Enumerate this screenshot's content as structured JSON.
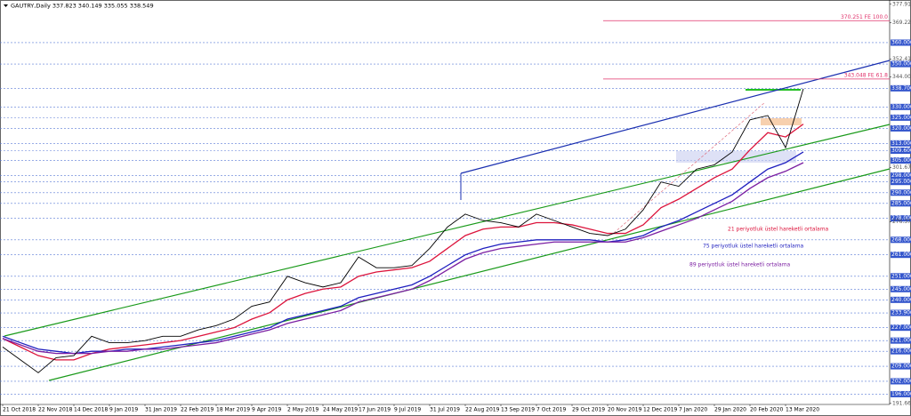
{
  "chart_data": {
    "type": "line",
    "title": "GAUTRY,Daily 337.823 340.149 335.055 338.549",
    "categories": [
      "21 Oct 2018",
      null,
      "22 Nov 2018",
      null,
      "14 Dec 2018",
      null,
      "9 Jan 2019",
      null,
      "31 Jan 2019",
      null,
      "22 Feb 2019",
      null,
      "18 Mar 2019",
      null,
      "9 Apr 2019",
      null,
      "2 May 2019",
      null,
      "24 May 2019",
      null,
      "17 Jun 2019",
      null,
      "9 Jul 2019",
      null,
      "31 Jul 2019",
      null,
      "22 Aug 2019",
      null,
      "13 Sep 2019",
      null,
      "7 Oct 2019",
      null,
      "29 Oct 2019",
      null,
      "20 Nov 2019",
      null,
      "12 Dec 2019",
      null,
      "7 Jan 2020",
      null,
      "29 Jan 2020",
      null,
      "20 Feb 2020",
      null,
      "13 Mar 2020",
      null
    ],
    "values": [
      218,
      212,
      206,
      213,
      214,
      223,
      220,
      220,
      221,
      223,
      223,
      226,
      228,
      231,
      237,
      239,
      251,
      248,
      246,
      248,
      260,
      255,
      255,
      256,
      264,
      274,
      280,
      277,
      276,
      274,
      280,
      277,
      274,
      271,
      270,
      273,
      282,
      295,
      293,
      301,
      303,
      309,
      324,
      326,
      311,
      338.5
    ],
    "color": "#000000",
    "series": [
      {
        "name": "21 periyotluk üstel hareketli ortalama",
        "color": "#dc143c",
        "values": [
          222,
          218,
          214,
          212,
          212,
          215,
          217,
          218,
          219,
          220,
          221,
          223,
          225,
          227,
          231,
          234,
          240,
          243,
          245,
          246,
          251,
          253,
          254,
          255,
          258,
          264,
          270,
          273,
          274,
          274,
          276,
          276,
          275,
          273,
          271,
          271,
          275,
          283,
          287,
          292,
          297,
          301,
          310,
          318,
          316,
          322
        ]
      },
      {
        "name": "75 periyotluk üstel hareketli ortalama",
        "color": "#1f1fbf",
        "values": [
          223,
          220,
          217,
          216,
          215,
          216,
          216,
          217,
          217,
          218,
          219,
          220,
          221,
          223,
          225,
          227,
          231,
          233,
          235,
          237,
          241,
          243,
          245,
          247,
          251,
          256,
          261,
          264,
          266,
          267,
          268,
          268,
          268,
          268,
          267,
          268,
          270,
          274,
          277,
          281,
          285,
          289,
          295,
          301,
          304,
          309
        ]
      },
      {
        "name": "89 periyotluk üstel hareketli ortalama",
        "color": "#7b1fa2",
        "values": [
          222,
          219,
          216,
          215,
          215,
          215,
          216,
          216,
          217,
          217,
          218,
          219,
          220,
          222,
          224,
          226,
          229,
          231,
          233,
          235,
          239,
          241,
          243,
          245,
          249,
          254,
          259,
          262,
          264,
          265,
          266,
          267,
          267,
          267,
          267,
          267,
          269,
          272,
          275,
          278,
          282,
          286,
          292,
          297,
          300,
          304
        ]
      }
    ],
    "ylim": [
      191.2,
      379.9
    ],
    "yticks": [
      {
        "value": 377.915,
        "label": "377.915"
      },
      {
        "value": 369.225,
        "label": "369.225"
      },
      {
        "value": 352.415,
        "label": "352.415"
      },
      {
        "value": 344,
        "label": "344.000"
      },
      {
        "value": 301.67,
        "label": "301.670"
      },
      {
        "value": 276.37,
        "label": "276.370"
      },
      {
        "value": 191.66,
        "label": "191.660"
      }
    ],
    "levels": [
      {
        "value": 360,
        "label": "360.000"
      },
      {
        "value": 350,
        "label": "350.000"
      },
      {
        "value": 338.7,
        "label": "338.700"
      },
      {
        "value": 330,
        "label": "330.000"
      },
      {
        "value": 325,
        "label": "325.000"
      },
      {
        "value": 320,
        "label": "320.000"
      },
      {
        "value": 313,
        "label": "313.000"
      },
      {
        "value": 309.6,
        "label": "309.600"
      },
      {
        "value": 305,
        "label": "305.000"
      },
      {
        "value": 298,
        "label": "298.000"
      },
      {
        "value": 295,
        "label": "295.000"
      },
      {
        "value": 290,
        "label": "290.000"
      },
      {
        "value": 285,
        "label": "285.000"
      },
      {
        "value": 278,
        "label": "278.000"
      },
      {
        "value": 268,
        "label": "268.000"
      },
      {
        "value": 261,
        "label": "261.000"
      },
      {
        "value": 251,
        "label": "251.000"
      },
      {
        "value": 245,
        "label": "245.000"
      },
      {
        "value": 240,
        "label": "240.000"
      },
      {
        "value": 233.9,
        "label": "233.900"
      },
      {
        "value": 227,
        "label": "227.000"
      },
      {
        "value": 221,
        "label": "221.000"
      },
      {
        "value": 216,
        "label": "216.000"
      },
      {
        "value": 209,
        "label": "209.000"
      },
      {
        "value": 202,
        "label": "202.000"
      },
      {
        "value": 196,
        "label": "196.000"
      }
    ],
    "fib_levels": [
      {
        "value": 370.251,
        "label": "370.251 FE 100.0"
      },
      {
        "value": 343.048,
        "label": "343.048 FE 61.8"
      }
    ],
    "level_color": "#3355cc",
    "fib_color": "#e0306a"
  }
}
